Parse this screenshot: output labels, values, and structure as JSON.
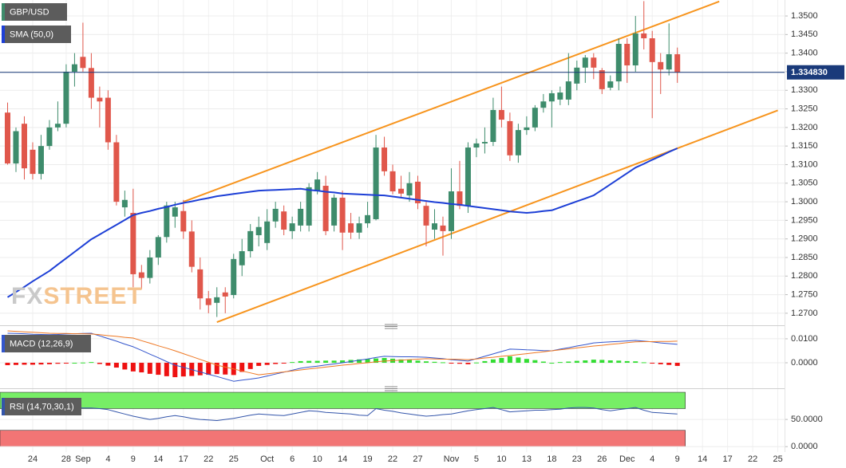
{
  "chart_data": {
    "type": "candlestick",
    "title": "GBP/USD",
    "watermark": [
      "FX",
      "STREET"
    ],
    "categories": [
      null,
      null,
      null,
      "24",
      null,
      null,
      null,
      "28",
      null,
      "Sep",
      null,
      null,
      "4",
      null,
      null,
      "9",
      null,
      null,
      "14",
      null,
      null,
      "17",
      null,
      null,
      "22",
      null,
      null,
      "25",
      null,
      null,
      null,
      "Oct",
      null,
      null,
      "6",
      null,
      null,
      "10",
      null,
      null,
      "14",
      null,
      null,
      "19",
      null,
      null,
      "22",
      null,
      null,
      "27",
      null,
      null,
      null,
      "Nov",
      null,
      null,
      "5",
      null,
      null,
      "10",
      null,
      null,
      "13",
      null,
      null,
      "18",
      null,
      null,
      "23",
      null,
      null,
      "26",
      null,
      null,
      "Dec",
      null,
      null,
      "4",
      null,
      null,
      "9",
      null,
      null,
      "14",
      null,
      null,
      "17",
      null,
      null,
      "22",
      null,
      null,
      "25"
    ],
    "open": [
      1.324,
      1.3103,
      1.321,
      1.314,
      1.3075,
      1.315,
      1.32,
      1.321,
      1.335,
      1.339,
      1.336,
      1.328,
      1.328,
      1.316,
      1.2985,
      1.297,
      1.281,
      1.2795,
      1.285,
      1.2905,
      1.296,
      1.2975,
      1.292,
      1.2818,
      1.274,
      1.2728,
      1.2756,
      1.2749,
      1.2829,
      1.2867,
      1.291,
      1.2889,
      1.2947,
      1.2974,
      1.2921,
      1.2936,
      1.2936,
      1.3028,
      1.3043,
      1.2936,
      1.3011,
      1.2942,
      1.2917,
      1.2942,
      1.2953,
      1.3146,
      1.3082,
      1.3035,
      1.3017,
      1.3054,
      1.2989,
      1.2925,
      1.2936,
      1.2921,
      1.3028,
      1.2989,
      1.3146,
      1.3157,
      1.3161,
      1.3247,
      1.3217,
      1.3125,
      1.3193,
      1.32,
      1.3253,
      1.327,
      1.3275,
      1.3275,
      1.3318,
      1.3361,
      1.3388,
      1.3354,
      1.3307,
      1.3324,
      1.3425,
      1.3367,
      1.3453,
      1.344,
      1.3376,
      1.3356,
      1.3397,
      null,
      null,
      null,
      null,
      null,
      null,
      null,
      null,
      null,
      null,
      null,
      null
    ],
    "high": [
      1.3267,
      1.32,
      1.323,
      1.316,
      1.318,
      1.322,
      1.327,
      1.337,
      1.34,
      1.3482,
      1.34,
      1.331,
      1.33,
      1.318,
      1.303,
      1.3035,
      1.283,
      1.287,
      1.291,
      1.3,
      1.3,
      1.3005,
      1.295,
      1.285,
      1.276,
      1.277,
      1.277,
      1.286,
      1.29,
      1.294,
      1.296,
      1.298,
      1.3,
      1.299,
      1.296,
      1.3,
      1.305,
      1.308,
      1.307,
      1.302,
      1.303,
      1.297,
      1.296,
      1.3,
      1.318,
      1.3175,
      1.31,
      1.307,
      1.308,
      1.307,
      1.3,
      1.298,
      1.296,
      1.309,
      1.311,
      1.316,
      1.317,
      1.32,
      1.328,
      1.331,
      1.324,
      1.321,
      1.323,
      1.326,
      1.329,
      1.33,
      1.331,
      1.34,
      1.338,
      1.3395,
      1.34,
      1.336,
      1.334,
      1.344,
      1.344,
      1.35,
      1.354,
      1.346,
      1.34,
      1.348,
      1.3415,
      null,
      null,
      null,
      null,
      null,
      null,
      null,
      null,
      null,
      null,
      null,
      null
    ],
    "low": [
      1.31,
      1.308,
      1.306,
      1.306,
      1.306,
      1.314,
      1.319,
      1.32,
      1.331,
      1.335,
      1.325,
      1.32,
      1.314,
      1.299,
      1.296,
      1.277,
      1.2765,
      1.278,
      1.283,
      1.289,
      1.293,
      1.29,
      1.281,
      1.271,
      1.27,
      1.269,
      1.27,
      1.274,
      1.28,
      1.285,
      1.288,
      1.287,
      1.293,
      1.291,
      1.29,
      1.292,
      1.292,
      1.302,
      1.291,
      1.292,
      1.287,
      1.29,
      1.29,
      1.293,
      1.295,
      1.307,
      1.302,
      1.301,
      1.3,
      1.298,
      1.288,
      1.29,
      1.2855,
      1.29,
      1.298,
      1.297,
      1.312,
      1.313,
      1.315,
      1.32,
      1.311,
      1.3105,
      1.318,
      1.319,
      1.324,
      1.32,
      1.326,
      1.326,
      1.33,
      1.332,
      1.333,
      1.329,
      1.33,
      1.33,
      1.332,
      1.335,
      1.341,
      1.3225,
      1.329,
      1.334,
      1.332,
      null,
      null,
      null,
      null,
      null,
      null,
      null,
      null,
      null,
      null,
      null,
      null
    ],
    "close": [
      1.3103,
      1.319,
      1.309,
      1.3075,
      1.315,
      1.32,
      1.321,
      1.335,
      1.337,
      1.336,
      1.328,
      1.327,
      1.316,
      1.3,
      1.3005,
      1.2805,
      1.2795,
      1.285,
      1.2905,
      1.299,
      1.2985,
      1.292,
      1.2825,
      1.274,
      1.2722,
      1.2743,
      1.2745,
      1.2846,
      1.2867,
      1.2921,
      1.2932,
      1.2947,
      1.2981,
      1.2925,
      1.2942,
      1.2981,
      1.3039,
      1.306,
      1.2921,
      1.3011,
      1.2917,
      1.2917,
      1.2942,
      1.2964,
      1.3146,
      1.3082,
      1.3028,
      1.3022,
      1.305,
      1.2996,
      1.2936,
      1.2942,
      1.2921,
      1.3028,
      1.2989,
      1.3146,
      1.3157,
      1.3161,
      1.3247,
      1.3221,
      1.3125,
      1.3193,
      1.32,
      1.3253,
      1.327,
      1.3292,
      1.3294,
      1.3324,
      1.3361,
      1.3388,
      1.3361,
      1.3303,
      1.3324,
      1.3425,
      1.3367,
      1.3453,
      1.344,
      1.3376,
      1.3356,
      1.3397,
      1.3348,
      null,
      null,
      null,
      null,
      null,
      null,
      null,
      null,
      null,
      null,
      null,
      null
    ],
    "up_color": "#3e8c6c",
    "down_color": "#e0574b",
    "ylim": [
      1.2674,
      1.3543
    ],
    "yticks": [
      {
        "value": 1.27,
        "label": "1.2700"
      },
      {
        "value": 1.275,
        "label": "1.2750"
      },
      {
        "value": 1.28,
        "label": "1.2800"
      },
      {
        "value": 1.285,
        "label": "1.2850"
      },
      {
        "value": 1.29,
        "label": "1.2900"
      },
      {
        "value": 1.295,
        "label": "1.2950"
      },
      {
        "value": 1.3,
        "label": "1.3000"
      },
      {
        "value": 1.305,
        "label": "1.3050"
      },
      {
        "value": 1.31,
        "label": "1.3100"
      },
      {
        "value": 1.315,
        "label": "1.3150"
      },
      {
        "value": 1.32,
        "label": "1.3200"
      },
      {
        "value": 1.325,
        "label": "1.3250"
      },
      {
        "value": 1.33,
        "label": "1.3300"
      },
      {
        "value": 1.335,
        "label": "1.3350"
      },
      {
        "value": 1.34,
        "label": "1.3400"
      },
      {
        "value": 1.345,
        "label": "1.3450"
      },
      {
        "value": 1.35,
        "label": "1.3500"
      }
    ],
    "grid": true,
    "series": [
      {
        "name": "SMA (50,0)",
        "color": "#1d3fd6",
        "values": [
          1.2743,
          1.2757,
          1.2771,
          1.2786,
          1.28,
          1.2814,
          1.2831,
          1.2848,
          1.2865,
          1.2882,
          1.2899,
          1.2912,
          1.2925,
          1.2938,
          1.2951,
          1.2964,
          1.297,
          1.2975,
          1.2981,
          1.2986,
          1.2992,
          1.2997,
          1.3001,
          1.3006,
          1.301,
          1.3015,
          1.3018,
          1.3021,
          1.3024,
          1.3027,
          1.303,
          1.3031,
          1.3032,
          1.3033,
          1.3034,
          1.3035,
          1.3032,
          1.303,
          1.3027,
          1.3025,
          1.3022,
          1.3021,
          1.302,
          1.3019,
          1.3018,
          1.3017,
          1.3014,
          1.3011,
          1.3008,
          1.3005,
          1.3002,
          1.2999,
          1.2997,
          1.2994,
          1.2992,
          1.2989,
          1.2986,
          1.2983,
          1.298,
          1.2977,
          1.2974,
          1.2972,
          1.297,
          1.2972,
          1.2975,
          1.2977,
          1.2985,
          1.2993,
          1.3001,
          1.3009,
          1.3017,
          1.3032,
          1.3047,
          1.3062,
          1.3077,
          1.3092,
          1.3102,
          1.3113,
          1.3123,
          1.3134,
          1.3144,
          null,
          null,
          null,
          null,
          null,
          null,
          null,
          null,
          null,
          null,
          null,
          null
        ]
      }
    ],
    "trendlines": [
      {
        "color": "#f7941d",
        "x": [
          21,
          85
        ],
        "y": [
          1.3,
          1.3539
        ]
      },
      {
        "color": "#f7941d",
        "x": [
          25,
          92
        ],
        "y": [
          1.2676,
          1.3246
        ]
      }
    ],
    "last_price": {
      "value": 1.33483,
      "label": "1.334830"
    },
    "last_price_color": "#1a3a7a",
    "panels": [
      {
        "type": "macd",
        "name": "MACD (12,26,9)",
        "ylim": [
          -0.0093,
          0.0143
        ],
        "yticks": [
          {
            "value": 0.01,
            "label": "0.0100"
          },
          {
            "value": 0,
            "label": "0.0000"
          }
        ],
        "series": [
          {
            "color": "#3355cc",
            "values": [
              0.0123,
              0.0122,
              0.0121,
              0.0119,
              0.0118,
              0.0117,
              0.0118,
              0.012,
              0.0121,
              0.0122,
              0.0123,
              0.0112,
              0.0101,
              0.009,
              0.0078,
              0.0067,
              0.0052,
              0.0036,
              0.0021,
              0.0005,
              -0.001,
              -0.0019,
              -0.0029,
              -0.0038,
              -0.0048,
              -0.0057,
              -0.0067,
              -0.0077,
              -0.0072,
              -0.0068,
              -0.0063,
              -0.0055,
              -0.0047,
              -0.0039,
              -0.0031,
              -0.0023,
              -0.0018,
              -0.0014,
              -0.0009,
              -0.0005,
              0.0,
              0.0005,
              0.0011,
              0.0016,
              0.0022,
              0.0027,
              0.0026,
              0.0025,
              0.0025,
              0.0024,
              0.0023,
              0.002,
              0.0017,
              0.0013,
              0.001,
              0.0007,
              0.0017,
              0.0027,
              0.0037,
              0.0047,
              0.0057,
              0.0056,
              0.0054,
              0.0053,
              0.0051,
              0.005,
              0.0057,
              0.0063,
              0.007,
              0.0076,
              0.0083,
              0.0085,
              0.0087,
              0.0089,
              0.0091,
              0.0093,
              0.009,
              0.0087,
              0.0083,
              0.008,
              0.0077,
              null,
              null,
              null,
              null,
              null,
              null,
              null,
              null,
              null,
              null,
              null,
              null
            ]
          },
          {
            "color": "#ee7722",
            "values": [
              0.0133,
              0.0131,
              0.0129,
              0.0127,
              0.0125,
              0.0123,
              0.0122,
              0.0122,
              0.0121,
              0.0121,
              0.012,
              0.0117,
              0.0113,
              0.011,
              0.0106,
              0.0103,
              0.0092,
              0.0082,
              0.0071,
              0.0061,
              0.005,
              0.0038,
              0.0026,
              0.0014,
              0.0002,
              -0.001,
              -0.0018,
              -0.0026,
              -0.0034,
              -0.0042,
              -0.005,
              -0.0046,
              -0.0042,
              -0.0038,
              -0.0034,
              -0.003,
              -0.0026,
              -0.0022,
              -0.0018,
              -0.0014,
              -0.001,
              -0.0007,
              -0.0003,
              0.0,
              0.0004,
              0.0007,
              0.0009,
              0.0011,
              0.0013,
              0.0015,
              0.0017,
              0.0016,
              0.0015,
              0.0015,
              0.0014,
              0.0013,
              0.0016,
              0.002,
              0.0023,
              0.0027,
              0.003,
              0.0034,
              0.0038,
              0.0042,
              0.0046,
              0.005,
              0.0054,
              0.0058,
              0.0062,
              0.0066,
              0.007,
              0.0073,
              0.0077,
              0.008,
              0.0084,
              0.0087,
              0.0088,
              0.0088,
              0.0089,
              0.0089,
              0.009,
              null,
              null,
              null,
              null,
              null,
              null,
              null,
              null,
              null,
              null,
              null,
              null
            ]
          }
        ],
        "histogram": {
          "up_color": "#33dd33",
          "down_color": "#ee1111",
          "values": [
            -0.001,
            -0.0009,
            -0.0008,
            -0.0008,
            -0.0007,
            -0.0006,
            -0.0004,
            -0.0002,
            0.0,
            0.0001,
            0.0003,
            -0.0005,
            -0.0012,
            -0.002,
            -0.0028,
            -0.0036,
            -0.004,
            -0.0046,
            -0.005,
            -0.0056,
            -0.006,
            -0.0057,
            -0.0055,
            -0.0052,
            -0.005,
            -0.0047,
            -0.0049,
            -0.0051,
            -0.0038,
            -0.0026,
            -0.0013,
            -0.0009,
            -0.0005,
            -0.0001,
            0.0003,
            0.0007,
            0.0008,
            0.0008,
            0.0009,
            0.0009,
            0.001,
            0.0012,
            0.0014,
            0.0016,
            0.0018,
            0.002,
            0.0017,
            0.0014,
            0.0012,
            0.0009,
            0.0006,
            0.0004,
            0.0002,
            -0.0002,
            -0.0004,
            -0.0006,
            0.0001,
            0.0007,
            0.0014,
            0.002,
            0.0027,
            0.0022,
            0.0016,
            0.0011,
            0.0005,
            0.0,
            0.0003,
            0.0005,
            0.0008,
            0.001,
            0.0013,
            0.0012,
            0.001,
            0.0009,
            0.0007,
            0.0006,
            0.0002,
            -0.0001,
            -0.0006,
            -0.0009,
            -0.0013,
            null,
            null,
            null,
            null,
            null,
            null,
            null,
            null,
            null,
            null,
            null,
            null
          ]
        }
      },
      {
        "type": "rsi",
        "name": "RSI (14,70,30,1)",
        "ylim": [
          -10,
          103
        ],
        "yticks": [
          {
            "value": 50,
            "label": "50.0000"
          },
          {
            "value": 0,
            "label": "0.0000"
          }
        ],
        "bands": [
          {
            "from": 70,
            "to": 100,
            "color": "#77ee66"
          },
          {
            "from": 0,
            "to": 30,
            "color": "#f27575"
          }
        ],
        "series": [
          {
            "color": "#3355aa",
            "values": [
              74,
              74,
              74,
              73,
              73,
              73,
              73,
              72,
              72,
              71,
              71,
              70,
              68,
              64,
              60,
              56,
              53,
              50,
              52,
              55,
              57,
              55,
              52,
              50,
              49,
              48,
              50,
              52,
              55,
              58,
              60,
              59,
              58,
              57,
              60,
              63,
              66,
              65,
              63,
              62,
              61,
              60,
              58,
              57,
              70,
              67,
              65,
              62,
              60,
              58,
              56,
              57,
              59,
              60,
              63,
              66,
              68,
              70,
              72,
              68,
              64,
              65,
              66,
              67,
              67,
              68,
              69,
              71,
              72,
              72,
              71,
              68,
              66,
              68,
              70,
              72,
              67,
              63,
              62,
              61,
              60,
              null,
              null,
              null,
              null,
              null,
              null,
              null,
              null,
              null,
              null,
              null,
              null
            ]
          }
        ]
      }
    ]
  }
}
